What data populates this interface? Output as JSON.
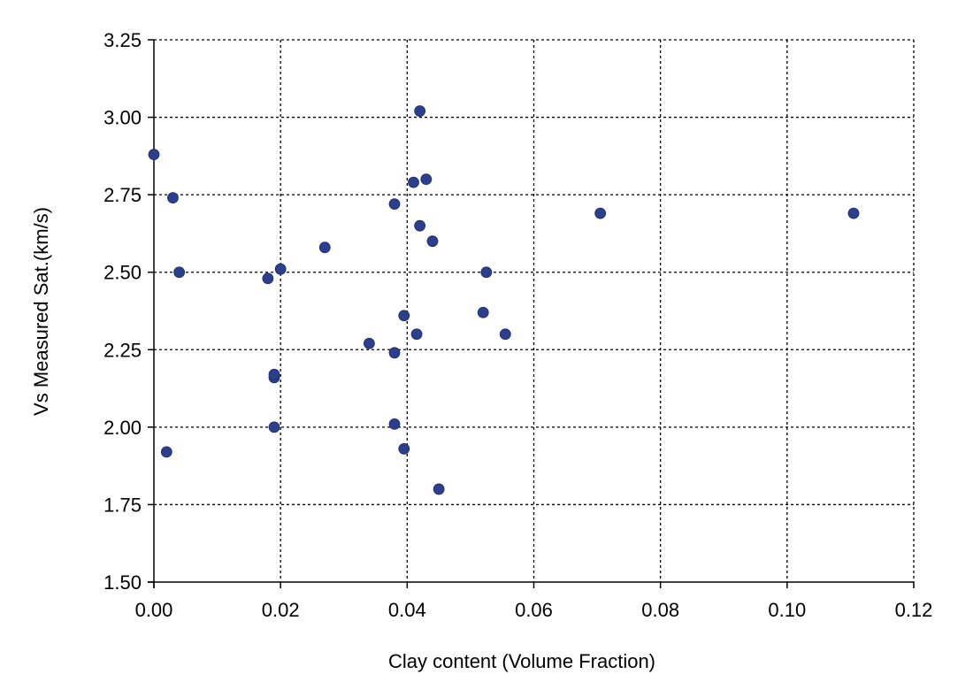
{
  "chart_data": {
    "type": "scatter",
    "title": "",
    "xlabel": "Clay content (Volume Fraction)",
    "ylabel": "Vs Measured Sat.(km/s)",
    "xlim": [
      0,
      0.12
    ],
    "ylim": [
      1.5,
      3.25
    ],
    "x_ticks": [
      "0.00",
      "0.02",
      "0.04",
      "0.06",
      "0.08",
      "0.10",
      "0.12"
    ],
    "y_ticks": [
      "1.50",
      "1.75",
      "2.00",
      "2.25",
      "2.50",
      "2.75",
      "3.00",
      "3.25"
    ],
    "grid": true,
    "marker_color": "#2B3F8C",
    "points": [
      {
        "x": 0.0,
        "y": 2.88
      },
      {
        "x": 0.002,
        "y": 1.92
      },
      {
        "x": 0.003,
        "y": 2.74
      },
      {
        "x": 0.004,
        "y": 2.5
      },
      {
        "x": 0.018,
        "y": 2.48
      },
      {
        "x": 0.019,
        "y": 2.0
      },
      {
        "x": 0.019,
        "y": 2.16
      },
      {
        "x": 0.019,
        "y": 2.17
      },
      {
        "x": 0.02,
        "y": 2.51
      },
      {
        "x": 0.027,
        "y": 2.58
      },
      {
        "x": 0.034,
        "y": 2.27
      },
      {
        "x": 0.038,
        "y": 2.72
      },
      {
        "x": 0.038,
        "y": 2.24
      },
      {
        "x": 0.038,
        "y": 2.01
      },
      {
        "x": 0.0395,
        "y": 1.93
      },
      {
        "x": 0.0395,
        "y": 2.36
      },
      {
        "x": 0.041,
        "y": 2.79
      },
      {
        "x": 0.0415,
        "y": 2.3
      },
      {
        "x": 0.042,
        "y": 2.65
      },
      {
        "x": 0.042,
        "y": 3.02
      },
      {
        "x": 0.043,
        "y": 2.8
      },
      {
        "x": 0.044,
        "y": 2.6
      },
      {
        "x": 0.045,
        "y": 1.8
      },
      {
        "x": 0.052,
        "y": 2.37
      },
      {
        "x": 0.0525,
        "y": 2.5
      },
      {
        "x": 0.0555,
        "y": 2.3
      },
      {
        "x": 0.0705,
        "y": 2.69
      },
      {
        "x": 0.1105,
        "y": 2.69
      }
    ]
  }
}
